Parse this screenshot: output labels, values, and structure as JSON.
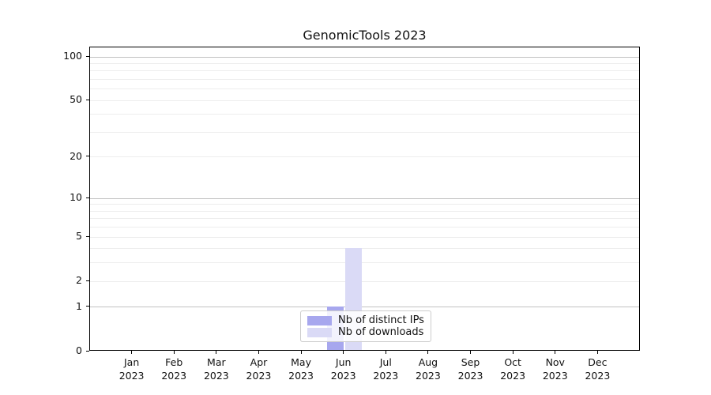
{
  "chart_data": {
    "type": "bar",
    "title": "GenomicTools 2023",
    "x_ticks": [
      {
        "month": "Jan",
        "year": "2023"
      },
      {
        "month": "Feb",
        "year": "2023"
      },
      {
        "month": "Mar",
        "year": "2023"
      },
      {
        "month": "Apr",
        "year": "2023"
      },
      {
        "month": "May",
        "year": "2023"
      },
      {
        "month": "Jun",
        "year": "2023"
      },
      {
        "month": "Jul",
        "year": "2023"
      },
      {
        "month": "Aug",
        "year": "2023"
      },
      {
        "month": "Sep",
        "year": "2023"
      },
      {
        "month": "Oct",
        "year": "2023"
      },
      {
        "month": "Nov",
        "year": "2023"
      },
      {
        "month": "Dec",
        "year": "2023"
      }
    ],
    "series": [
      {
        "name": "Nb of distinct IPs",
        "color": "#a7a7ee",
        "values": [
          0,
          0,
          0,
          0,
          0,
          1,
          0,
          0,
          0,
          0,
          0,
          0
        ]
      },
      {
        "name": "Nb of downloads",
        "color": "#dadaf6",
        "values": [
          0,
          0,
          0,
          0,
          0,
          4,
          0,
          0,
          0,
          0,
          0,
          0
        ]
      }
    ],
    "y_axis": {
      "scale": "log1p",
      "range": [
        0,
        100
      ],
      "tick_values": [
        0,
        1,
        2,
        5,
        10,
        20,
        50,
        100
      ],
      "major_gridlines": [
        1,
        10,
        100
      ],
      "minor_gridlines": [
        2,
        3,
        4,
        5,
        6,
        7,
        8,
        9,
        20,
        30,
        40,
        50,
        60,
        70,
        80,
        90
      ]
    },
    "legend": {
      "position": "lower center"
    },
    "colors": {
      "grid_major": "#c2c2c2",
      "grid_minor": "#ededed",
      "axis": "#000000",
      "legend_border": "#cccccc"
    }
  }
}
